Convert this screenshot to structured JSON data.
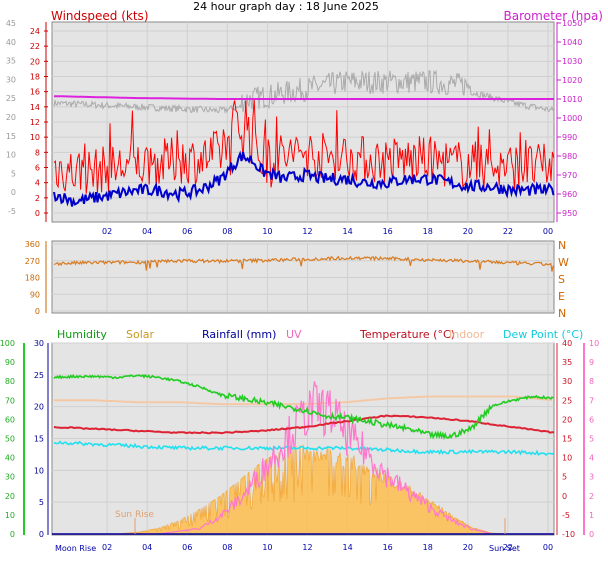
{
  "page_title": "24 hour graph day : 18 June 2025",
  "colors": {
    "wind": "#ff0000",
    "wind_avg": "#0000cc",
    "barometer": "#dd22dd",
    "gust_grey": "#aaaaaa",
    "direction": "#d97a1e",
    "humidity": "#22cc22",
    "solar": "#ffbb44",
    "rainfall": "#000099",
    "uv": "#ff77cc",
    "temperature": "#dd2233",
    "indoor": "#f4c8a4",
    "dewpoint": "#22e0ee",
    "panel_bg": "#e4e4e4",
    "grid": "#d0d0d0"
  },
  "panels": {
    "top": {
      "left_label": "Windspeed (kts)",
      "right_label": "Barometer (hpa)"
    },
    "bottom": {
      "legend": [
        "Humidity",
        "Solar",
        "Rainfall (mm)",
        "UV",
        "Temperature (°C)",
        "Indoor",
        "Dew Point (°C)"
      ],
      "annotations": [
        "Moon Rise",
        "Sun Rise",
        "Sun Set"
      ]
    }
  },
  "chart_data": [
    {
      "type": "line",
      "title": "24 hour graph day : 18 June 2025",
      "xticks": [
        "02",
        "04",
        "06",
        "08",
        "10",
        "12",
        "14",
        "16",
        "18",
        "20",
        "22",
        "00"
      ],
      "y_outer_ticks": [
        "-5",
        "0",
        "5",
        "10",
        "15",
        "20",
        "25",
        "30",
        "35",
        "40",
        "45"
      ],
      "y_wind_ticks": [
        "0",
        "2",
        "4",
        "6",
        "8",
        "10",
        "12",
        "14",
        "16",
        "18",
        "20",
        "22",
        "24"
      ],
      "y_baro_ticks": [
        "950",
        "960",
        "970",
        "980",
        "990",
        "1000",
        "1010",
        "1020",
        "1030",
        "1040",
        "1050"
      ],
      "ylabel_left": "Windspeed (kts)",
      "ylabel_right": "Barometer (hpa)",
      "wind_ylim": [
        -1,
        25
      ],
      "baro_ylim": [
        950,
        1050
      ],
      "series": [
        {
          "name": "Windspeed (kts)",
          "x": [
            0,
            1,
            2,
            3,
            4,
            5,
            6,
            7,
            8,
            8.5,
            9,
            9.5,
            10,
            11,
            12,
            13,
            14,
            15,
            16,
            17,
            18,
            19,
            20,
            21,
            22,
            23,
            24
          ],
          "values": [
            6,
            5.5,
            5.5,
            6,
            6.5,
            6.5,
            7,
            7,
            8,
            10,
            12,
            11,
            8,
            7.5,
            8,
            7.5,
            7.5,
            7,
            7,
            7,
            7,
            6.5,
            6.5,
            6,
            6,
            6,
            6
          ]
        },
        {
          "x": [
            0,
            1,
            2,
            3,
            4,
            5,
            6,
            7,
            8,
            8.5,
            9,
            9.5,
            10,
            11,
            12,
            13,
            14,
            15,
            16,
            17,
            18,
            19,
            20,
            21,
            22,
            23,
            24
          ],
          "values": [
            2.5,
            1.5,
            2,
            2.5,
            3,
            3,
            2.5,
            3,
            4.5,
            6,
            7.5,
            7,
            5.5,
            4.5,
            5,
            4.5,
            4.5,
            4,
            4,
            4.5,
            4.5,
            4,
            3.5,
            3.5,
            3,
            3,
            3
          ]
        },
        {
          "x": [
            0,
            4,
            8,
            10,
            12,
            14,
            16,
            18,
            20,
            22,
            24
          ],
          "values": [
            14.5,
            14,
            13.5,
            14.5,
            15.5,
            16.5,
            16.5,
            16.5,
            16,
            14.5,
            13.5
          ]
        },
        {
          "name": "Barometer (hpa)",
          "x": [
            0,
            4,
            8,
            12,
            16,
            20,
            24
          ],
          "values": [
            1011.5,
            1010.5,
            1010,
            1010,
            1010,
            1010,
            1010
          ]
        }
      ]
    },
    {
      "type": "line",
      "xticks": [
        "02",
        "04",
        "06",
        "08",
        "10",
        "12",
        "14",
        "16",
        "18",
        "20",
        "22",
        "00"
      ],
      "y_left_ticks": [
        "0",
        "90",
        "180",
        "270",
        "360"
      ],
      "y_right_ticks": [
        "N",
        "E",
        "S",
        "W",
        "N"
      ],
      "ylim": [
        0,
        360
      ],
      "series": [
        {
          "x": [
            0,
            2,
            4,
            6,
            8,
            10,
            12,
            14,
            16,
            18,
            20,
            22,
            24
          ],
          "values": [
            255,
            260,
            262,
            270,
            268,
            272,
            278,
            285,
            282,
            275,
            268,
            258,
            250
          ]
        }
      ]
    },
    {
      "type": "line",
      "xticks": [
        "02",
        "04",
        "06",
        "08",
        "10",
        "12",
        "14",
        "16",
        "18",
        "20",
        "22",
        "00"
      ],
      "y_humidity_ticks": [
        "0",
        "10",
        "20",
        "30",
        "40",
        "50",
        "60",
        "70",
        "80",
        "90",
        "100"
      ],
      "y_rain_ticks": [
        "0",
        "5",
        "10",
        "15",
        "20",
        "25",
        "30"
      ],
      "y_temp_ticks": [
        "-10",
        "-5",
        "0",
        "5",
        "10",
        "15",
        "20",
        "25",
        "30",
        "35",
        "40"
      ],
      "y_uv_ticks": [
        "0",
        "1",
        "2",
        "3",
        "4",
        "5",
        "6",
        "7",
        "8",
        "9",
        "10"
      ],
      "humidity_ylim": [
        0,
        100
      ],
      "temp_ylim": [
        -10,
        40
      ],
      "uv_ylim": [
        0,
        10
      ],
      "solar_ylim": [
        0,
        100
      ],
      "series": [
        {
          "name": "Humidity",
          "x": [
            0,
            1,
            2,
            3,
            4,
            5,
            6,
            7,
            8,
            9,
            10,
            11,
            12,
            13,
            14,
            15,
            16,
            17,
            18,
            19,
            20,
            20.5,
            21,
            22,
            23,
            24
          ],
          "values": [
            82,
            82.5,
            82.5,
            82,
            83,
            82,
            80,
            77,
            73,
            71,
            69,
            67,
            65,
            62,
            61,
            59,
            57,
            55,
            52,
            51,
            55,
            61,
            67,
            70,
            72,
            71
          ]
        },
        {
          "name": "Solar",
          "x": [
            3,
            4,
            5,
            6,
            7,
            8,
            9,
            10,
            11,
            12,
            13,
            14,
            15,
            16,
            17,
            18,
            19,
            20,
            21,
            22
          ],
          "values": [
            0,
            1,
            3,
            7,
            13,
            20,
            29,
            38,
            44,
            47,
            46,
            43,
            38,
            32,
            26,
            19,
            11,
            4,
            0.5,
            0
          ]
        },
        {
          "name": "UV",
          "x": [
            5,
            7,
            8,
            9,
            10,
            11,
            12,
            12.5,
            13,
            13.5,
            14,
            15,
            16,
            17,
            18,
            19,
            20,
            21
          ],
          "values": [
            0,
            0.3,
            1,
            2,
            3.5,
            5,
            6.5,
            7,
            6.8,
            6.5,
            5.5,
            4.5,
            3.2,
            2.3,
            1.5,
            0.8,
            0.3,
            0
          ]
        },
        {
          "name": "Temperature (°C)",
          "x": [
            0,
            2,
            4,
            6,
            8,
            10,
            12,
            14,
            16,
            18,
            20,
            22,
            24
          ],
          "values": [
            18,
            17.5,
            17,
            16.5,
            16.5,
            17,
            18,
            19.5,
            21,
            20.5,
            19.5,
            18,
            16.5
          ]
        },
        {
          "name": "Indoor",
          "x": [
            0,
            2,
            4,
            6,
            8,
            10,
            12,
            14,
            16,
            18,
            20,
            22,
            24
          ],
          "values": [
            25,
            25,
            24.5,
            24.5,
            24,
            24,
            24,
            24.5,
            25.5,
            26,
            26,
            26,
            25
          ]
        },
        {
          "name": "Dew Point (°C)",
          "x": [
            0,
            2,
            4,
            6,
            8,
            10,
            12,
            14,
            16,
            18,
            20,
            22,
            24
          ],
          "values": [
            14,
            13.5,
            13,
            12.5,
            12.5,
            12.5,
            12.5,
            12.5,
            12,
            11.5,
            11.5,
            11.5,
            11
          ]
        }
      ]
    }
  ]
}
